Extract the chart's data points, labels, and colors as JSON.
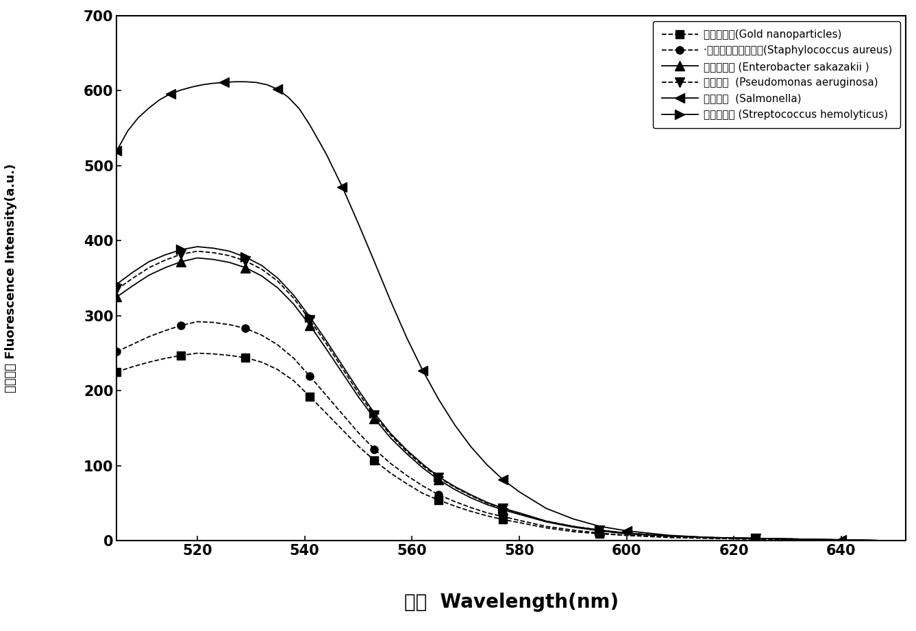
{
  "xlabel_cn": "波长",
  "xlabel_en": "Wavelength(nm)",
  "ylabel_cn": "荧光强度",
  "ylabel_en": "Fluorescence Intensity(a.u.)",
  "xmin": 505,
  "xmax": 652,
  "ymin": 0,
  "ymax": 700,
  "xticks": [
    520,
    540,
    560,
    580,
    600,
    620,
    640
  ],
  "yticks": [
    0,
    100,
    200,
    300,
    400,
    500,
    600,
    700
  ],
  "series": [
    {
      "name_cn": "金纳米颗粒",
      "name_en": "Gold nanoparticles",
      "label": "金纳米颗粒(Gold nanoparticles)",
      "marker": "s",
      "linestyle": "--",
      "color": "#000000",
      "x": [
        505,
        508,
        511,
        514,
        517,
        520,
        523,
        526,
        529,
        532,
        535,
        538,
        541,
        544,
        547,
        550,
        553,
        556,
        559,
        562,
        565,
        568,
        571,
        574,
        577,
        580,
        585,
        590,
        595,
        600,
        608,
        616,
        624,
        632,
        640,
        648
      ],
      "y": [
        225,
        232,
        238,
        243,
        247,
        250,
        249,
        247,
        244,
        238,
        228,
        213,
        192,
        170,
        148,
        126,
        107,
        90,
        76,
        63,
        54,
        46,
        39,
        33,
        28,
        24,
        17,
        12,
        9,
        7,
        4,
        3,
        2,
        1,
        1,
        0
      ]
    },
    {
      "name_cn": "金黄色葛萄球菌球菌",
      "name_en": "Staphylococcus aureus",
      "label": "·金黄色葛萄球菌球菌(Staphylococcus aureus)",
      "marker": "o",
      "linestyle": "--",
      "color": "#000000",
      "x": [
        505,
        508,
        511,
        514,
        517,
        520,
        523,
        526,
        529,
        532,
        535,
        538,
        541,
        544,
        547,
        550,
        553,
        556,
        559,
        562,
        565,
        568,
        571,
        574,
        577,
        580,
        585,
        590,
        595,
        600,
        608,
        616,
        624,
        632,
        640,
        648
      ],
      "y": [
        252,
        262,
        272,
        280,
        287,
        292,
        291,
        288,
        283,
        274,
        261,
        243,
        219,
        194,
        169,
        144,
        122,
        103,
        87,
        73,
        61,
        52,
        44,
        37,
        32,
        27,
        19,
        14,
        10,
        7,
        5,
        3,
        2,
        1,
        1,
        0
      ]
    },
    {
      "name_cn": "阪小肠杆菌",
      "name_en": "Enterobacter sakazakii",
      "label": "阪小肠杆菌 (Enterobacter sakazakii )",
      "marker": "^",
      "linestyle": "-",
      "color": "#000000",
      "x": [
        505,
        508,
        511,
        514,
        517,
        520,
        523,
        526,
        529,
        532,
        535,
        538,
        541,
        544,
        547,
        550,
        553,
        556,
        559,
        562,
        565,
        568,
        571,
        574,
        577,
        580,
        585,
        590,
        595,
        600,
        608,
        616,
        624,
        632,
        640,
        648
      ],
      "y": [
        325,
        340,
        354,
        364,
        372,
        377,
        375,
        371,
        364,
        353,
        337,
        315,
        287,
        256,
        224,
        192,
        163,
        137,
        116,
        97,
        81,
        68,
        57,
        48,
        41,
        35,
        25,
        18,
        13,
        9,
        6,
        4,
        3,
        2,
        1,
        0
      ]
    },
    {
      "name_cn": "假单胞菌",
      "name_en": "Pseudomonas aeruginosa",
      "label": "假单胞菌  (Pseudomonas aeruginosa)",
      "marker": "v",
      "linestyle": "--",
      "color": "#000000",
      "x": [
        505,
        508,
        511,
        514,
        517,
        520,
        523,
        526,
        529,
        532,
        535,
        538,
        541,
        544,
        547,
        550,
        553,
        556,
        559,
        562,
        565,
        568,
        571,
        574,
        577,
        580,
        585,
        590,
        595,
        600,
        608,
        616,
        624,
        632,
        640,
        648
      ],
      "y": [
        335,
        350,
        364,
        374,
        382,
        386,
        384,
        380,
        373,
        362,
        346,
        323,
        294,
        263,
        230,
        197,
        167,
        141,
        119,
        100,
        84,
        71,
        60,
        50,
        43,
        36,
        26,
        19,
        14,
        10,
        6,
        4,
        3,
        2,
        1,
        0
      ]
    },
    {
      "name_cn": "沙门氏菌",
      "name_en": "Salmonella",
      "label": "沙门氏菌  (Salmonella)",
      "marker": "<",
      "linestyle": "-",
      "color": "#000000",
      "x": [
        505,
        507,
        509,
        511,
        513,
        515,
        517,
        519,
        521,
        523,
        525,
        527,
        529,
        531,
        533,
        535,
        537,
        539,
        541,
        544,
        547,
        550,
        553,
        556,
        559,
        562,
        565,
        568,
        571,
        574,
        577,
        580,
        585,
        590,
        595,
        600,
        608,
        616,
        624,
        632,
        640,
        648
      ],
      "y": [
        520,
        546,
        564,
        577,
        588,
        596,
        601,
        605,
        608,
        610,
        611,
        612,
        612,
        611,
        608,
        602,
        591,
        576,
        554,
        516,
        472,
        423,
        372,
        320,
        271,
        227,
        188,
        154,
        125,
        101,
        81,
        65,
        43,
        29,
        19,
        13,
        7,
        4,
        3,
        2,
        1,
        0
      ]
    },
    {
      "name_cn": "溶血性链球",
      "name_en": "Streptococcus hemolyticus",
      "label": "溶血性链球 (Streptococcus hemolyticus)",
      "marker": ">",
      "linestyle": "-",
      "color": "#000000",
      "x": [
        505,
        508,
        511,
        514,
        517,
        520,
        523,
        526,
        529,
        532,
        535,
        538,
        541,
        544,
        547,
        550,
        553,
        556,
        559,
        562,
        565,
        568,
        571,
        574,
        577,
        580,
        585,
        590,
        595,
        600,
        608,
        616,
        624,
        632,
        640,
        648
      ],
      "y": [
        342,
        358,
        372,
        381,
        388,
        392,
        390,
        386,
        378,
        367,
        350,
        327,
        298,
        267,
        234,
        201,
        170,
        143,
        121,
        102,
        85,
        72,
        61,
        51,
        43,
        37,
        26,
        19,
        14,
        10,
        6,
        4,
        3,
        2,
        1,
        0
      ]
    }
  ],
  "background_color": "#ffffff",
  "plot_bg_color": "#ffffff"
}
